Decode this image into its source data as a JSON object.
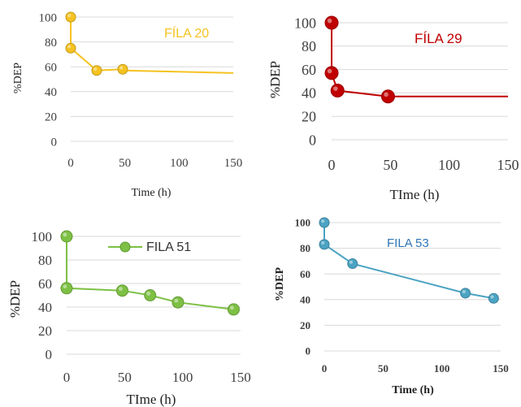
{
  "chart_data": [
    {
      "type": "line",
      "xlabel": "Time (h)",
      "ylabel": "%DEP",
      "xlim": [
        0,
        150
      ],
      "ylim": [
        0,
        100
      ],
      "x_ticks": [
        0,
        50,
        100,
        150
      ],
      "y_ticks": [
        0,
        20,
        40,
        60,
        80,
        100
      ],
      "grid": true,
      "legend_placement": "top-right",
      "series": [
        {
          "name": "FÍLA 20",
          "color": "#f5c220",
          "x": [
            0,
            0,
            24,
            48
          ],
          "y": [
            100,
            75,
            57,
            58
          ],
          "trend_x": [
            48,
            150
          ],
          "trend_y": [
            57,
            55
          ]
        }
      ]
    },
    {
      "type": "line",
      "xlabel": "TIme (h)",
      "ylabel": "%DEP",
      "xlim": [
        0,
        150
      ],
      "ylim": [
        0,
        100
      ],
      "x_ticks": [
        0,
        50,
        100,
        150
      ],
      "y_ticks": [
        0,
        20,
        40,
        60,
        80,
        100
      ],
      "grid": true,
      "legend_placement": "top-right",
      "series": [
        {
          "name": "FÍLA 29",
          "color": "#c00000",
          "x": [
            0,
            0,
            5,
            48
          ],
          "y": [
            100,
            57,
            42,
            37
          ],
          "trend_x": [
            48,
            150
          ],
          "trend_y": [
            37,
            37
          ]
        }
      ]
    },
    {
      "type": "line",
      "xlabel": "TIme (h)",
      "ylabel": "%DEP",
      "xlim": [
        0,
        150
      ],
      "ylim": [
        0,
        100
      ],
      "x_ticks": [
        0,
        50,
        100,
        150
      ],
      "y_ticks": [
        0,
        20,
        40,
        60,
        80,
        100
      ],
      "grid": true,
      "legend_placement": "top-right",
      "legend_has_marker": true,
      "series": [
        {
          "name": "FILA 51",
          "color": "#7dc044",
          "x": [
            0,
            0,
            48,
            72,
            96,
            144
          ],
          "y": [
            100,
            56,
            54,
            50,
            44,
            38
          ]
        }
      ]
    },
    {
      "type": "line",
      "xlabel": "Time (h)",
      "ylabel": "%DEP",
      "xlim": [
        0,
        150
      ],
      "ylim": [
        0,
        100
      ],
      "x_ticks": [
        0,
        50,
        100,
        150
      ],
      "y_ticks": [
        0,
        20,
        40,
        60,
        80,
        100
      ],
      "grid": true,
      "legend_placement": "top-center",
      "series": [
        {
          "name": "FILA 53",
          "color": "#4ba3c3",
          "label_color": "#2e75b6",
          "x": [
            0,
            0,
            24,
            120,
            144
          ],
          "y": [
            100,
            83,
            68,
            45,
            41
          ]
        }
      ]
    }
  ]
}
